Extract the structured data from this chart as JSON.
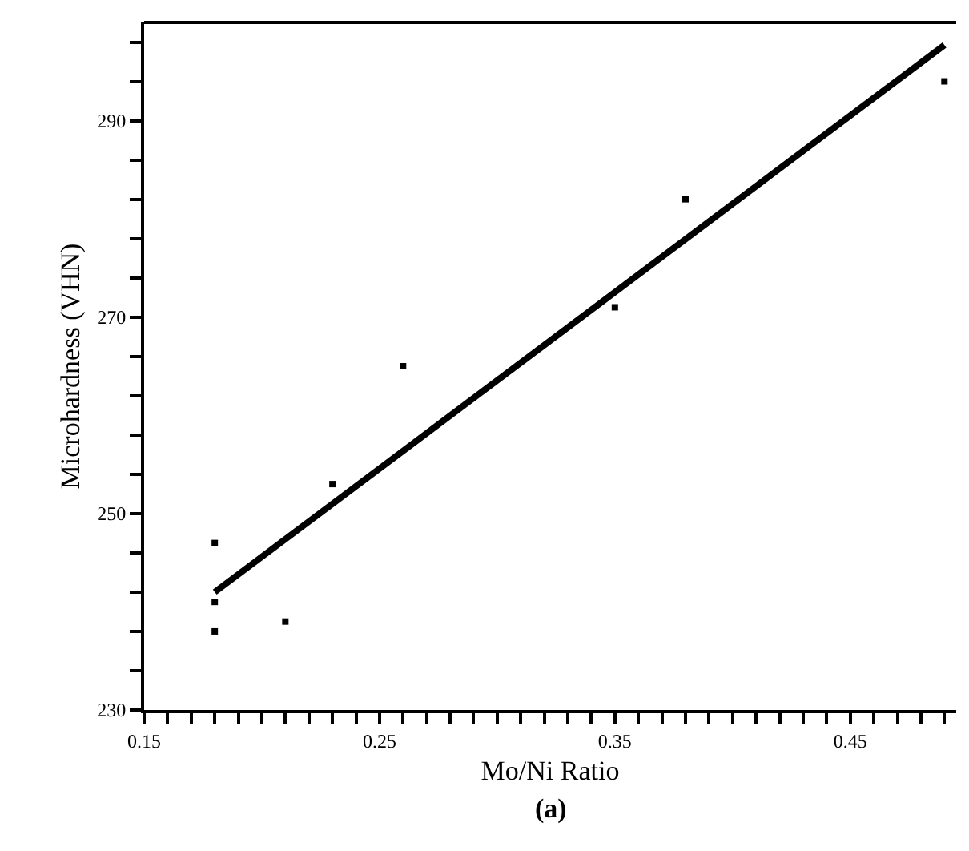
{
  "chart_data": {
    "type": "scatter",
    "xlabel": "Mo/Ni Ratio",
    "ylabel": "Microhardness (VHN)",
    "annotations": [
      "(a)"
    ],
    "x": [
      0.18,
      0.18,
      0.18,
      0.21,
      0.23,
      0.26,
      0.35,
      0.38,
      0.49
    ],
    "series": [
      {
        "color": "#000000",
        "marker": "square",
        "values": [
          247,
          241,
          238,
          239,
          253,
          265,
          271,
          282,
          294
        ]
      },
      {
        "type": "line",
        "color": "#000000",
        "x": [
          0.18,
          0.49
        ],
        "values": [
          242,
          297.7
        ]
      }
    ],
    "xlim": [
      0.15,
      0.495
    ],
    "ylim": [
      230,
      300
    ],
    "xticks": [
      0.15,
      {
        "value": 0.16,
        "label": null
      },
      {
        "value": 0.17,
        "label": null
      },
      {
        "value": 0.18,
        "label": null
      },
      {
        "value": 0.19,
        "label": null
      },
      {
        "value": 0.2,
        "label": null
      },
      {
        "value": 0.21,
        "label": null
      },
      {
        "value": 0.22,
        "label": null
      },
      {
        "value": 0.23,
        "label": null
      },
      {
        "value": 0.24,
        "label": null
      },
      0.25,
      {
        "value": 0.26,
        "label": null
      },
      {
        "value": 0.27,
        "label": null
      },
      {
        "value": 0.28,
        "label": null
      },
      {
        "value": 0.29,
        "label": null
      },
      {
        "value": 0.3,
        "label": null
      },
      {
        "value": 0.31,
        "label": null
      },
      {
        "value": 0.32,
        "label": null
      },
      {
        "value": 0.33,
        "label": null
      },
      {
        "value": 0.34,
        "label": null
      },
      0.35,
      {
        "value": 0.36,
        "label": null
      },
      {
        "value": 0.37,
        "label": null
      },
      {
        "value": 0.38,
        "label": null
      },
      {
        "value": 0.39,
        "label": null
      },
      {
        "value": 0.4,
        "label": null
      },
      {
        "value": 0.41,
        "label": null
      },
      {
        "value": 0.42,
        "label": null
      },
      {
        "value": 0.43,
        "label": null
      },
      {
        "value": 0.44,
        "label": null
      },
      0.45,
      {
        "value": 0.46,
        "label": null
      },
      {
        "value": 0.47,
        "label": null
      },
      {
        "value": 0.48,
        "label": null
      },
      {
        "value": 0.49,
        "label": null
      }
    ],
    "yticks": [
      230,
      {
        "value": 234,
        "label": null
      },
      {
        "value": 238,
        "label": null
      },
      {
        "value": 242,
        "label": null
      },
      {
        "value": 246,
        "label": null
      },
      250,
      {
        "value": 254,
        "label": null
      },
      {
        "value": 258,
        "label": null
      },
      {
        "value": 262,
        "label": null
      },
      {
        "value": 266,
        "label": null
      },
      270,
      {
        "value": 274,
        "label": null
      },
      {
        "value": 278,
        "label": null
      },
      {
        "value": 282,
        "label": null
      },
      {
        "value": 286,
        "label": null
      },
      290,
      {
        "value": 294,
        "label": null
      },
      {
        "value": 298,
        "label": null
      }
    ],
    "legend": false
  }
}
